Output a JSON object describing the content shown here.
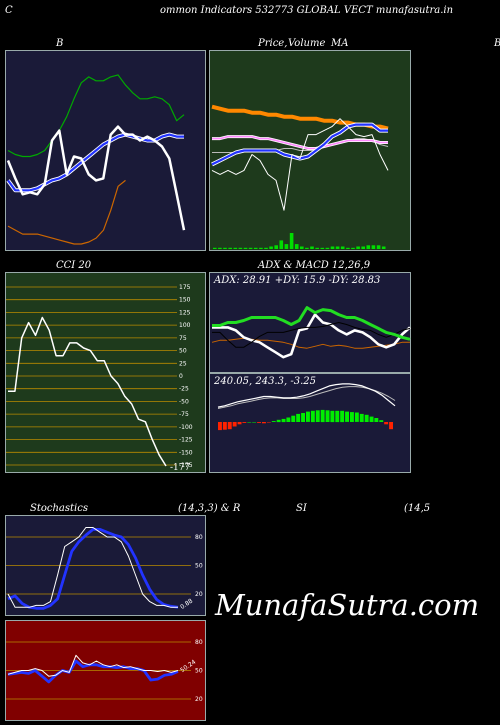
{
  "header": {
    "left": "C",
    "title": "ommon  Indicators 532773 GLOBAL VECT munafasutra.in"
  },
  "titles": {
    "bb": "B",
    "price": "Price,",
    "price_overlap": "Volume",
    "price_ma": "MA",
    "price_right": "B",
    "cci": "CCI 20",
    "adx_macd": "ADX  & MACD 12,26,9",
    "stoch": "Stochastics",
    "stoch_params": "(14,3,3) & R",
    "rsi": "SI",
    "rsi_params": "(14,5"
  },
  "labels": {
    "adx_values": "ADX: 28.91  +DY: 15.9  -DY: 28.83",
    "macd_values": "240.05,  243.3,  -3.25",
    "cci_last": "-177",
    "stoch_last": "0.88",
    "rsi_last": "50.24"
  },
  "watermark": "MunafaSutra.com",
  "colors": {
    "navy_bg": "#1a1a38",
    "green_bg": "#1e3a1c",
    "red_bg": "#800000"
  },
  "chart_data": [
    {
      "name": "bollinger",
      "type": "line",
      "series": [
        {
          "values": [
            0.45,
            0.36,
            0.28,
            0.29,
            0.28,
            0.33,
            0.55,
            0.6,
            0.38,
            0.47,
            0.46,
            0.38,
            0.35,
            0.36,
            0.58,
            0.62,
            0.58,
            0.58,
            0.55,
            0.57,
            0.55,
            0.52,
            0.46,
            0.28,
            0.1
          ],
          "color": "#ffffff"
        },
        {
          "values": [
            0.35,
            0.3,
            0.3,
            0.3,
            0.31,
            0.33,
            0.35,
            0.36,
            0.38,
            0.41,
            0.44,
            0.47,
            0.5,
            0.53,
            0.55,
            0.57,
            0.58,
            0.57,
            0.56,
            0.55,
            0.55,
            0.57,
            0.58,
            0.57,
            0.57
          ],
          "color": "#2233ff"
        },
        {
          "values": [
            0.5,
            0.48,
            0.47,
            0.47,
            0.48,
            0.5,
            0.55,
            0.6,
            0.67,
            0.76,
            0.84,
            0.87,
            0.85,
            0.85,
            0.87,
            0.88,
            0.83,
            0.79,
            0.76,
            0.76,
            0.77,
            0.76,
            0.73,
            0.65,
            0.68
          ],
          "color": "#00aa00"
        },
        {
          "values": [
            0.12,
            0.1,
            0.08,
            0.08,
            0.08,
            0.07,
            0.06,
            0.05,
            0.04,
            0.03,
            0.03,
            0.04,
            0.06,
            0.1,
            0.2,
            0.32,
            0.35
          ],
          "color": "#cc6600"
        }
      ]
    },
    {
      "name": "price_volume",
      "type": "line",
      "series": [
        {
          "values": [
            0.4,
            0.38,
            0.4,
            0.38,
            0.4,
            0.48,
            0.45,
            0.38,
            0.35,
            0.2,
            0.48,
            0.46,
            0.58,
            0.58,
            0.6,
            0.62,
            0.66,
            0.62,
            0.58,
            0.57,
            0.58,
            0.48,
            0.4
          ],
          "color": "#ffffff"
        },
        {
          "values": [
            0.72,
            0.71,
            0.7,
            0.7,
            0.7,
            0.69,
            0.69,
            0.68,
            0.68,
            0.67,
            0.67,
            0.66,
            0.66,
            0.66,
            0.65,
            0.65,
            0.64,
            0.64,
            0.63,
            0.63,
            0.62,
            0.62,
            0.61
          ],
          "color": "#ff8800"
        },
        {
          "values": [
            0.43,
            0.45,
            0.47,
            0.49,
            0.5,
            0.5,
            0.5,
            0.5,
            0.5,
            0.48,
            0.47,
            0.46,
            0.47,
            0.5,
            0.53,
            0.57,
            0.59,
            0.62,
            0.63,
            0.63,
            0.63,
            0.6,
            0.6
          ],
          "color": "#2233ff"
        },
        {
          "values": [
            0.56,
            0.56,
            0.57,
            0.57,
            0.57,
            0.57,
            0.56,
            0.56,
            0.55,
            0.54,
            0.53,
            0.52,
            0.51,
            0.51,
            0.52,
            0.53,
            0.54,
            0.55,
            0.55,
            0.55,
            0.55,
            0.54,
            0.54
          ],
          "color": "#ff88ff"
        },
        {
          "values": [
            0.49,
            0.49,
            0.49,
            0.49,
            0.5,
            0.5,
            0.5,
            0.5,
            0.5,
            0.51,
            0.51,
            0.5,
            0.5,
            0.5,
            0.52,
            0.53,
            0.54,
            0.55,
            0.56,
            0.56,
            0.55,
            0.53,
            0.52
          ],
          "color": "#bbbbbb"
        }
      ],
      "volume": [
        1,
        1,
        1,
        1,
        1,
        1,
        1,
        1,
        1,
        1,
        1,
        2,
        3,
        7,
        4,
        13,
        4,
        2,
        1,
        2,
        1,
        1,
        1,
        2,
        2,
        2,
        1,
        1,
        2,
        2,
        3,
        3,
        3,
        2
      ]
    },
    {
      "name": "cci",
      "type": "line",
      "ylim": [
        -175,
        175
      ],
      "yticks": [
        175,
        150,
        125,
        100,
        75,
        50,
        25,
        0,
        -25,
        -50,
        -75,
        -100,
        -125,
        -150,
        -175
      ],
      "series": [
        {
          "values": [
            -30,
            -30,
            75,
            105,
            80,
            115,
            90,
            40,
            40,
            65,
            65,
            55,
            50,
            30,
            30,
            0,
            -15,
            -40,
            -55,
            -85,
            -90,
            -125,
            -155,
            -177
          ],
          "color": "#ffffff"
        }
      ]
    },
    {
      "name": "adx",
      "type": "line",
      "series": [
        {
          "values": [
            0.45,
            0.45,
            0.45,
            0.42,
            0.35,
            0.32,
            0.3,
            0.25,
            0.2,
            0.15,
            0.18,
            0.42,
            0.44,
            0.58,
            0.5,
            0.48,
            0.42,
            0.38,
            0.42,
            0.4,
            0.35,
            0.28,
            0.25,
            0.28,
            0.38,
            0.45
          ],
          "color": "#ffffff"
        },
        {
          "values": [
            0.4,
            0.4,
            0.32,
            0.25,
            0.25,
            0.3,
            0.36,
            0.4,
            0.4,
            0.4,
            0.42,
            0.44,
            0.45,
            0.45,
            0.46,
            0.48,
            0.5,
            0.48,
            0.45,
            0.43,
            0.42,
            0.38,
            0.35,
            0.38,
            0.42,
            0.44
          ],
          "color": "#000000"
        },
        {
          "values": [
            0.47,
            0.47,
            0.5,
            0.5,
            0.52,
            0.55,
            0.55,
            0.55,
            0.55,
            0.52,
            0.48,
            0.52,
            0.65,
            0.6,
            0.63,
            0.62,
            0.58,
            0.55,
            0.55,
            0.52,
            0.48,
            0.44,
            0.4,
            0.38,
            0.35,
            0.33
          ],
          "color": "#22dd22"
        },
        {
          "values": [
            0.3,
            0.32,
            0.32,
            0.33,
            0.34,
            0.33,
            0.32,
            0.32,
            0.31,
            0.3,
            0.28,
            0.25,
            0.24,
            0.26,
            0.28,
            0.26,
            0.27,
            0.26,
            0.24,
            0.24,
            0.25,
            0.26,
            0.27,
            0.28,
            0.3,
            0.3
          ],
          "color": "#cc6600"
        }
      ]
    },
    {
      "name": "macd",
      "type": "bar",
      "values": [
        -0.18,
        -0.17,
        -0.16,
        -0.1,
        -0.05,
        -0.02,
        0.0,
        0.0,
        -0.02,
        -0.03,
        -0.01,
        0.02,
        0.05,
        0.07,
        0.1,
        0.14,
        0.18,
        0.2,
        0.23,
        0.25,
        0.26,
        0.27,
        0.26,
        0.25,
        0.25,
        0.25,
        0.23,
        0.22,
        0.21,
        0.18,
        0.16,
        0.12,
        0.09,
        0.04,
        -0.05,
        -0.16
      ],
      "series": [
        {
          "values": [
            0.5,
            0.52,
            0.55,
            0.58,
            0.6,
            0.62,
            0.64,
            0.66,
            0.66,
            0.65,
            0.64,
            0.64,
            0.65,
            0.67,
            0.7,
            0.74,
            0.78,
            0.82,
            0.84,
            0.85,
            0.85,
            0.84,
            0.82,
            0.78,
            0.74,
            0.68,
            0.6,
            0.52
          ],
          "color": "#ffffff"
        },
        {
          "values": [
            0.48,
            0.5,
            0.52,
            0.55,
            0.57,
            0.59,
            0.61,
            0.63,
            0.64,
            0.64,
            0.63,
            0.63,
            0.63,
            0.64,
            0.66,
            0.69,
            0.72,
            0.75,
            0.78,
            0.8,
            0.81,
            0.81,
            0.8,
            0.78,
            0.75,
            0.71,
            0.66,
            0.6
          ],
          "color": "#bbbbbb"
        }
      ]
    },
    {
      "name": "stochastics",
      "type": "line",
      "yticks": [
        80,
        50,
        20
      ],
      "series": [
        {
          "values": [
            20,
            6,
            6,
            6,
            8,
            8,
            12,
            40,
            70,
            75,
            80,
            90,
            90,
            85,
            80,
            80,
            75,
            60,
            40,
            20,
            12,
            8,
            8,
            6,
            6
          ],
          "color": "#ffffff"
        },
        {
          "values": [
            15,
            18,
            10,
            6,
            5,
            5,
            8,
            15,
            40,
            65,
            75,
            82,
            88,
            88,
            85,
            82,
            80,
            72,
            58,
            40,
            25,
            14,
            9,
            7,
            6
          ],
          "color": "#2233ff"
        }
      ]
    },
    {
      "name": "rsi",
      "type": "line",
      "yticks": [
        80,
        50,
        20
      ],
      "series": [
        {
          "values": [
            46,
            48,
            50,
            50,
            52,
            50,
            44,
            45,
            50,
            48,
            66,
            58,
            56,
            60,
            56,
            54,
            56,
            53,
            54,
            52,
            50,
            50,
            49,
            50,
            48,
            50
          ],
          "color": "#ffffff"
        },
        {
          "values": [
            46,
            47,
            48,
            47,
            50,
            44,
            38,
            45,
            50,
            48,
            60,
            54,
            56,
            56,
            54,
            54,
            53,
            54,
            52,
            52,
            50,
            40,
            41,
            45,
            46,
            49
          ],
          "color": "#2233ff"
        }
      ]
    }
  ]
}
